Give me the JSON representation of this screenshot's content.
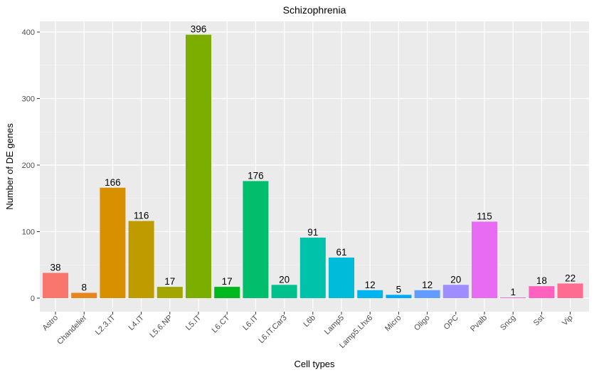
{
  "chart_data": {
    "type": "bar",
    "title": "Schizophrenia",
    "xlabel": "Cell types",
    "ylabel": "Number of DE genes",
    "ylim": [
      0,
      415
    ],
    "yticks": [
      0,
      100,
      200,
      300,
      400
    ],
    "grid": true,
    "legend": "none",
    "categories": [
      "Astro",
      "Chandelier",
      "L2.3.IT",
      "L4.IT",
      "L5.6.NP",
      "L5.IT",
      "L6.CT",
      "L6.IT",
      "L6.IT.Car3",
      "L6b",
      "Lamp5",
      "Lamp5.Lhx6",
      "Micro",
      "Oligo",
      "OPC",
      "Pvalb",
      "Sncg",
      "Sst",
      "Vip"
    ],
    "values": [
      38,
      8,
      166,
      116,
      17,
      396,
      17,
      176,
      20,
      91,
      61,
      12,
      5,
      12,
      20,
      115,
      1,
      18,
      22
    ],
    "colors": [
      "#F8766D",
      "#E7851E",
      "#D89000",
      "#C09B00",
      "#A3A500",
      "#7CAE00",
      "#00B81F",
      "#00BE6C",
      "#00C08B",
      "#00C1AA",
      "#00BBDA",
      "#00B4F0",
      "#00A9FF",
      "#619CFF",
      "#9F8CFF",
      "#E76BF3",
      "#F062DE",
      "#FF62BC",
      "#FF6C91"
    ]
  }
}
